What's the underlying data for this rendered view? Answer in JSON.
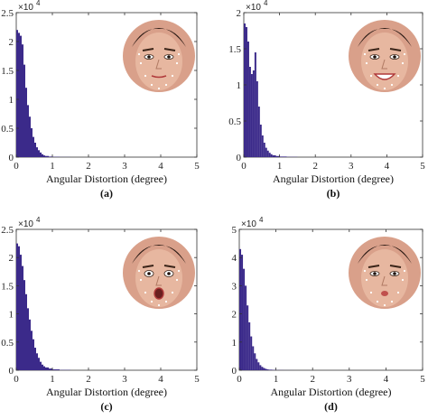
{
  "colors": {
    "bar": "#3b2a8a",
    "axis": "#333333",
    "face_skin": "#e7b7a0",
    "face_bg": "#d9a08a"
  },
  "chart_data": [
    {
      "type": "bar",
      "panel_label": "(a)",
      "xlabel": "Angular Distortion (degree)",
      "ylabel": "",
      "scale_base": "×10",
      "scale_exp": "4",
      "xlim": [
        0,
        5
      ],
      "ylim": [
        0,
        2.5
      ],
      "xticks": [
        "0",
        "1",
        "2",
        "3",
        "4",
        "5"
      ],
      "yticks": [
        "0",
        "0.5",
        "1",
        "1.5",
        "2",
        "2.5"
      ],
      "x": [
        0.0,
        0.05,
        0.1,
        0.15,
        0.2,
        0.25,
        0.3,
        0.35,
        0.4,
        0.45,
        0.5,
        0.55,
        0.6,
        0.65,
        0.7,
        0.75,
        0.8,
        0.9,
        1.0,
        1.2,
        1.5
      ],
      "values": [
        2.2,
        2.15,
        2.1,
        1.95,
        1.6,
        1.2,
        0.9,
        0.7,
        0.5,
        0.35,
        0.25,
        0.17,
        0.12,
        0.08,
        0.05,
        0.03,
        0.02,
        0.01,
        0.005,
        0.002,
        0.0
      ],
      "face": "neutral"
    },
    {
      "type": "bar",
      "panel_label": "(b)",
      "xlabel": "Angular Distortion (degree)",
      "ylabel": "",
      "scale_base": "×10",
      "scale_exp": "4",
      "xlim": [
        0,
        5
      ],
      "ylim": [
        0,
        2
      ],
      "xticks": [
        "0",
        "1",
        "2",
        "3",
        "4",
        "5"
      ],
      "yticks": [
        "0",
        "0.5",
        "1",
        "1.5",
        "2"
      ],
      "x": [
        0.0,
        0.05,
        0.1,
        0.15,
        0.2,
        0.25,
        0.3,
        0.35,
        0.4,
        0.45,
        0.5,
        0.55,
        0.6,
        0.65,
        0.7,
        0.75,
        0.8,
        0.9,
        1.0,
        1.2,
        1.5
      ],
      "values": [
        1.85,
        1.8,
        1.6,
        1.25,
        1.15,
        1.2,
        1.45,
        1.05,
        0.7,
        0.45,
        0.3,
        0.2,
        0.13,
        0.09,
        0.06,
        0.04,
        0.025,
        0.015,
        0.008,
        0.003,
        0.0
      ],
      "face": "smile"
    },
    {
      "type": "bar",
      "panel_label": "(c)",
      "xlabel": "Angular Distortion (degree)",
      "ylabel": "",
      "scale_base": "×10",
      "scale_exp": "4",
      "xlim": [
        0,
        5
      ],
      "ylim": [
        0,
        2.5
      ],
      "xticks": [
        "0",
        "1",
        "2",
        "3",
        "4",
        "5"
      ],
      "yticks": [
        "0",
        "0.5",
        "1",
        "1.5",
        "2",
        "2.5"
      ],
      "x": [
        0.0,
        0.05,
        0.1,
        0.15,
        0.2,
        0.25,
        0.3,
        0.35,
        0.4,
        0.45,
        0.5,
        0.55,
        0.6,
        0.65,
        0.7,
        0.75,
        0.8,
        0.9,
        1.0,
        1.2,
        1.5
      ],
      "values": [
        2.25,
        2.2,
        2.05,
        1.85,
        1.6,
        1.35,
        1.1,
        0.9,
        0.7,
        0.55,
        0.4,
        0.3,
        0.22,
        0.15,
        0.1,
        0.07,
        0.05,
        0.03,
        0.015,
        0.005,
        0.0
      ],
      "face": "surprise"
    },
    {
      "type": "bar",
      "panel_label": "(d)",
      "xlabel": "Angular Distortion (degree)",
      "ylabel": "",
      "scale_base": "×10",
      "scale_exp": "4",
      "xlim": [
        0,
        5
      ],
      "ylim": [
        0,
        5
      ],
      "xticks": [
        "0",
        "1",
        "2",
        "3",
        "4",
        "5"
      ],
      "yticks": [
        "0",
        "1",
        "2",
        "3",
        "4",
        "5"
      ],
      "x": [
        0.0,
        0.05,
        0.1,
        0.15,
        0.2,
        0.25,
        0.3,
        0.35,
        0.4,
        0.45,
        0.5,
        0.55,
        0.6,
        0.65,
        0.7,
        0.75,
        0.8,
        0.9,
        1.0,
        1.2,
        1.5
      ],
      "values": [
        4.3,
        4.1,
        3.6,
        3.0,
        2.3,
        1.7,
        1.2,
        0.85,
        0.6,
        0.4,
        0.28,
        0.18,
        0.12,
        0.08,
        0.05,
        0.03,
        0.02,
        0.01,
        0.005,
        0.002,
        0.0
      ],
      "face": "pout"
    }
  ]
}
